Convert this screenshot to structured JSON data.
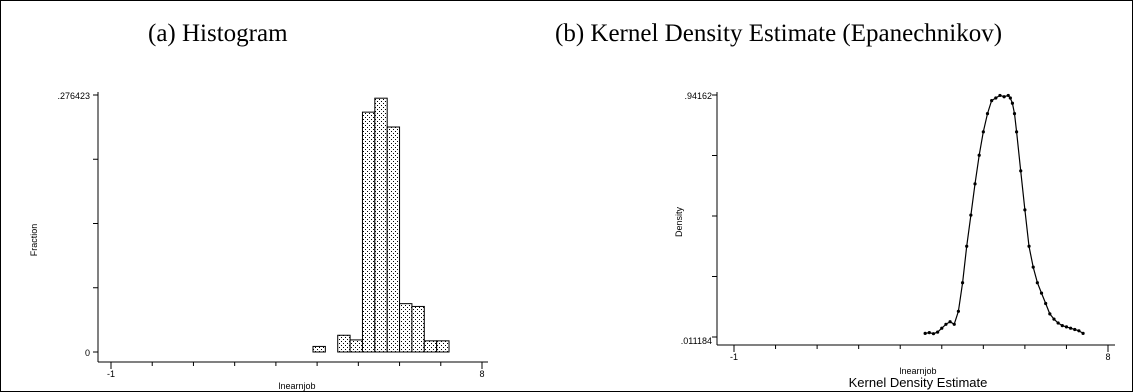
{
  "panels": {
    "a_title": "(a) Histogram",
    "b_title": "(b) Kernel Density Estimate (Epanechnikov)",
    "b_caption": "Kernel Density Estimate"
  },
  "colors": {
    "line": "#000000",
    "background": "#ffffff",
    "bar_fill": "#ffffff",
    "bar_stipple": "#000000"
  },
  "chart_data": [
    {
      "type": "bar",
      "title": "(a) Histogram",
      "xlabel": "lnearnjob",
      "ylabel": "Fraction",
      "xlim": [
        -1,
        8
      ],
      "ylim": [
        0,
        0.276423
      ],
      "x_tick_labels": [
        "-1",
        "8"
      ],
      "y_tick_labels": [
        "0",
        ".276423"
      ],
      "grid": false,
      "bin_width": 0.3,
      "bins": [
        {
          "x0": 3.9,
          "x1": 4.2,
          "value": 0.006
        },
        {
          "x0": 4.5,
          "x1": 4.8,
          "value": 0.018
        },
        {
          "x0": 4.8,
          "x1": 5.1,
          "value": 0.013
        },
        {
          "x0": 5.1,
          "x1": 5.4,
          "value": 0.258
        },
        {
          "x0": 5.4,
          "x1": 5.7,
          "value": 0.273
        },
        {
          "x0": 5.7,
          "x1": 6.0,
          "value": 0.242
        },
        {
          "x0": 6.0,
          "x1": 6.3,
          "value": 0.052
        },
        {
          "x0": 6.3,
          "x1": 6.6,
          "value": 0.049
        },
        {
          "x0": 6.6,
          "x1": 6.9,
          "value": 0.012
        },
        {
          "x0": 6.9,
          "x1": 7.2,
          "value": 0.012
        }
      ]
    },
    {
      "type": "line",
      "title": "(b) Kernel Density Estimate (Epanechnikov)",
      "xlabel": "lnearnjob",
      "ylabel": "Density",
      "caption": "Kernel Density Estimate",
      "xlim": [
        -1,
        8
      ],
      "ylim": [
        0.011184,
        0.94162
      ],
      "x_tick_labels": [
        "-1",
        "8"
      ],
      "y_tick_labels": [
        ".011184",
        ".94162"
      ],
      "grid": false,
      "markers": true,
      "x": [
        3.6,
        3.7,
        3.8,
        3.9,
        4.0,
        4.1,
        4.2,
        4.3,
        4.4,
        4.5,
        4.6,
        4.7,
        4.8,
        4.9,
        5.0,
        5.1,
        5.2,
        5.3,
        5.4,
        5.5,
        5.6,
        5.65,
        5.7,
        5.75,
        5.8,
        5.9,
        6.0,
        6.1,
        6.2,
        6.3,
        6.4,
        6.5,
        6.6,
        6.7,
        6.8,
        6.9,
        7.0,
        7.1,
        7.2,
        7.3,
        7.4
      ],
      "y": [
        0.025,
        0.028,
        0.024,
        0.03,
        0.045,
        0.06,
        0.07,
        0.06,
        0.11,
        0.22,
        0.36,
        0.48,
        0.6,
        0.71,
        0.8,
        0.87,
        0.92,
        0.93,
        0.94,
        0.935,
        0.94,
        0.93,
        0.91,
        0.87,
        0.8,
        0.65,
        0.5,
        0.36,
        0.28,
        0.22,
        0.18,
        0.14,
        0.1,
        0.08,
        0.065,
        0.055,
        0.05,
        0.045,
        0.04,
        0.035,
        0.025
      ]
    }
  ]
}
